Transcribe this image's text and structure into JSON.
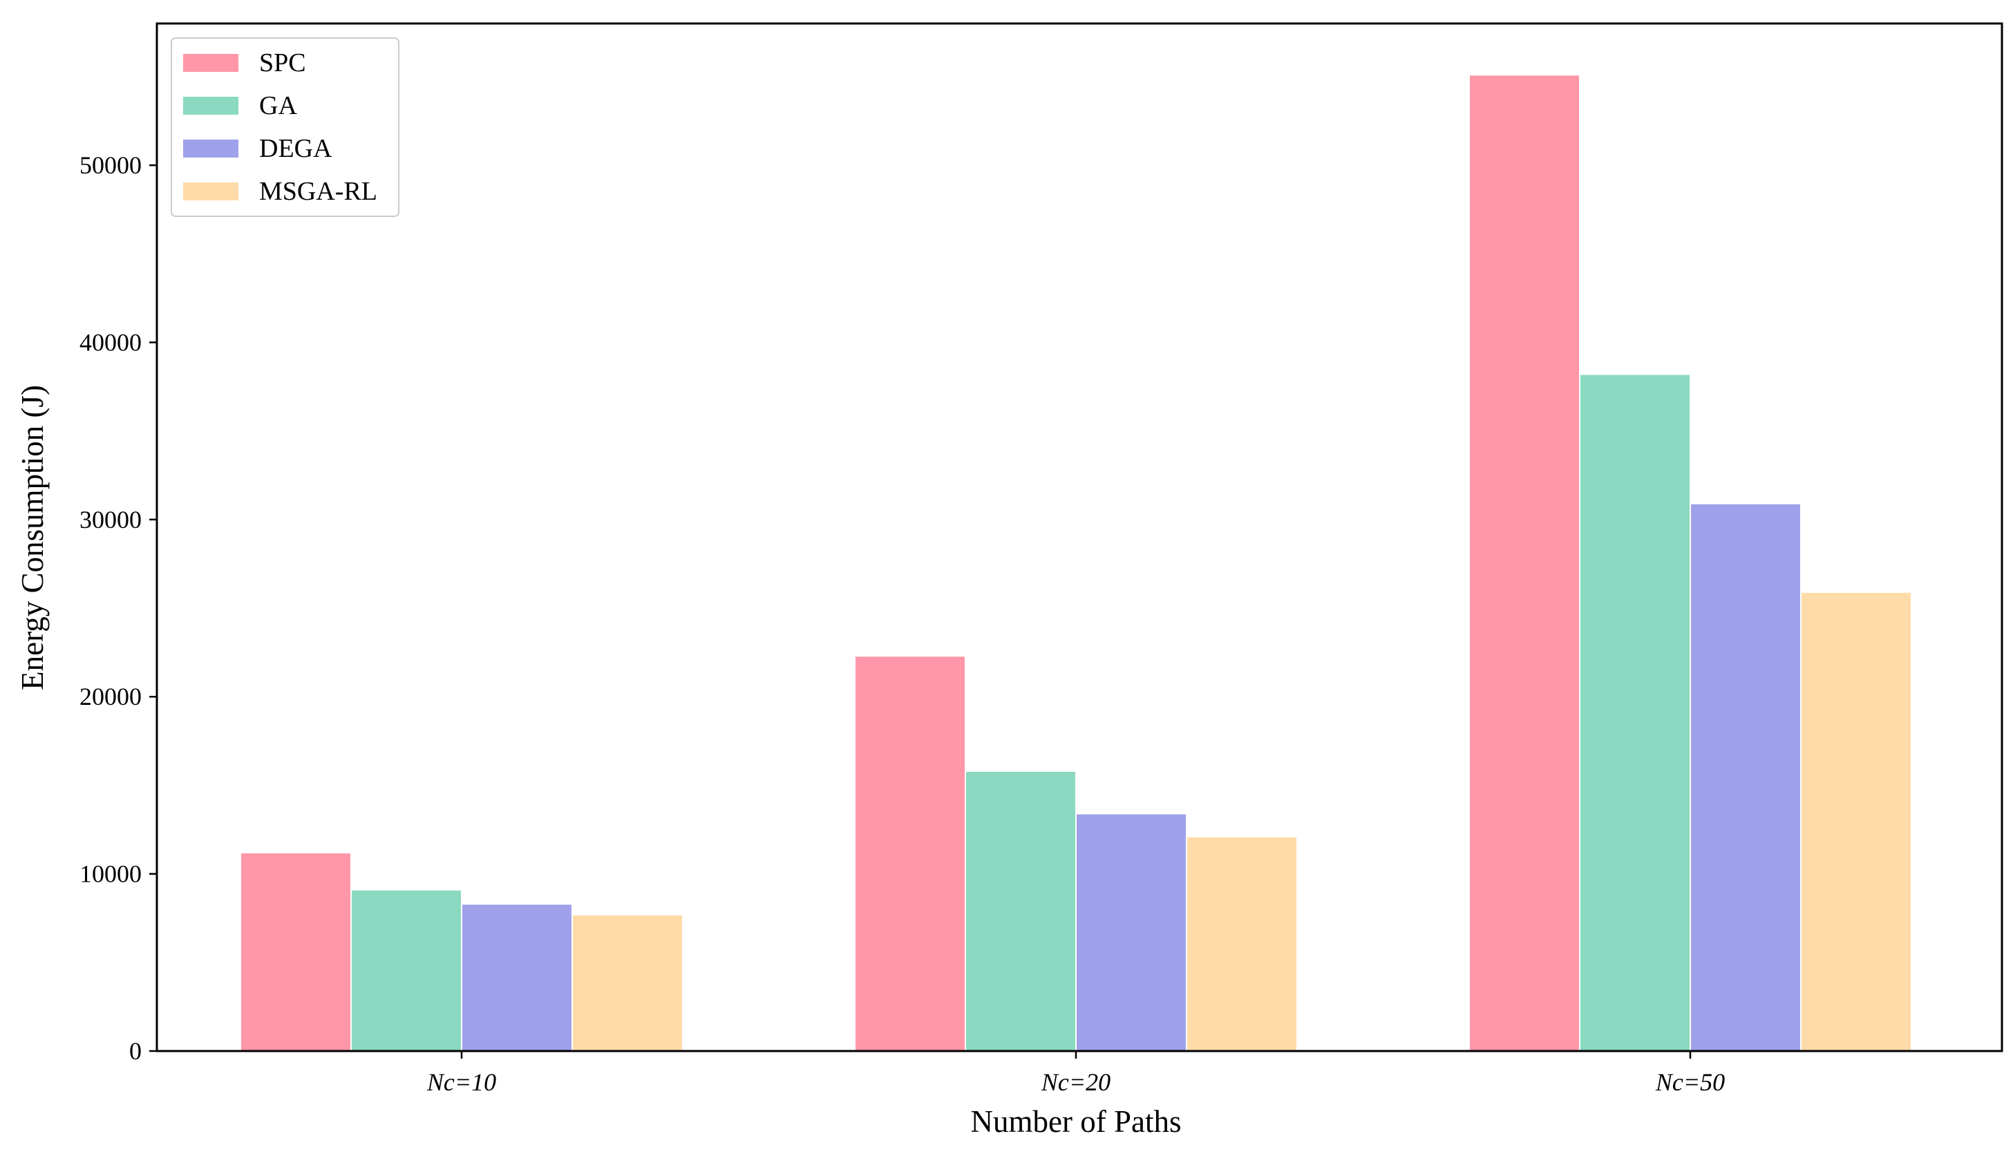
{
  "chart_data": {
    "type": "bar",
    "categories": [
      "Nc=10",
      "Nc=20",
      "Nc=50"
    ],
    "series": [
      {
        "name": "SPC",
        "color": "#ff97a8",
        "values": [
          11200,
          22300,
          55100
        ]
      },
      {
        "name": "GA",
        "color": "#8ad9c0",
        "values": [
          9100,
          15800,
          38200
        ]
      },
      {
        "name": "DEGA",
        "color": "#9fa1ea",
        "values": [
          8300,
          13400,
          30900
        ]
      },
      {
        "name": "MSGA-RL",
        "color": "#fedba8",
        "values": [
          7700,
          12100,
          25900
        ]
      }
    ],
    "title": "",
    "xlabel": "Number of Paths",
    "ylabel": "Energy Consumption (J)",
    "ylim": [
      0,
      58000
    ],
    "yticks": [
      0,
      10000,
      20000,
      30000,
      40000,
      50000
    ],
    "ytick_labels": [
      "0",
      "10000",
      "20000",
      "30000",
      "40000",
      "50000"
    ],
    "grid": false,
    "legend_position": "top-left"
  }
}
